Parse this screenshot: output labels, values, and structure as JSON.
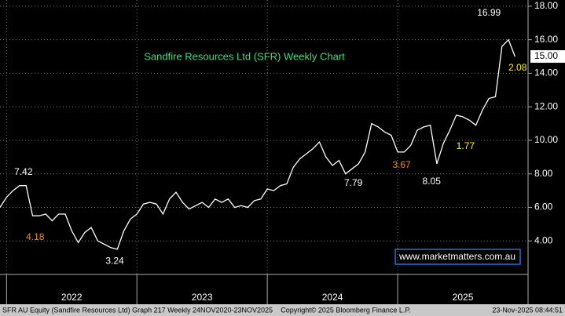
{
  "chart_data": {
    "type": "line",
    "title": "Sandfire Resources Ltd (SFR) Weekly Chart",
    "series": [
      {
        "name": "SFR AU Equity",
        "color": "#ffffff",
        "x": [
          2021.95,
          2022.0,
          2022.05,
          2022.1,
          2022.15,
          2022.2,
          2022.25,
          2022.3,
          2022.35,
          2022.4,
          2022.45,
          2022.5,
          2022.55,
          2022.6,
          2022.65,
          2022.7,
          2022.75,
          2022.8,
          2022.85,
          2022.9,
          2022.95,
          2023.0,
          2023.05,
          2023.1,
          2023.15,
          2023.2,
          2023.25,
          2023.3,
          2023.35,
          2023.4,
          2023.45,
          2023.5,
          2023.55,
          2023.6,
          2023.65,
          2023.7,
          2023.75,
          2023.8,
          2023.85,
          2023.9,
          2023.95,
          2024.0,
          2024.05,
          2024.1,
          2024.15,
          2024.2,
          2024.25,
          2024.3,
          2024.35,
          2024.4,
          2024.45,
          2024.5,
          2024.55,
          2024.6,
          2024.65,
          2024.7,
          2024.75,
          2024.8,
          2024.85,
          2024.9,
          2024.95,
          2025.0,
          2025.05,
          2025.1,
          2025.15,
          2025.2,
          2025.25,
          2025.3,
          2025.35,
          2025.4,
          2025.45,
          2025.5,
          2025.55,
          2025.6,
          2025.65,
          2025.7,
          2025.75,
          2025.8,
          2025.85,
          2025.9
        ],
        "values": [
          6.0,
          6.6,
          7.0,
          7.3,
          7.3,
          5.5,
          5.5,
          5.6,
          5.2,
          5.6,
          5.6,
          4.6,
          3.9,
          4.5,
          4.8,
          4.0,
          3.8,
          3.6,
          3.5,
          4.6,
          5.3,
          5.6,
          6.2,
          6.3,
          6.2,
          5.6,
          6.5,
          6.9,
          6.3,
          5.9,
          6.1,
          6.3,
          6.0,
          6.5,
          6.3,
          6.5,
          6.0,
          6.1,
          6.0,
          6.4,
          6.5,
          7.1,
          7.0,
          7.3,
          7.4,
          8.4,
          8.9,
          9.2,
          9.5,
          9.9,
          9.0,
          8.5,
          8.8,
          8.0,
          8.3,
          8.6,
          9.3,
          11.0,
          10.8,
          10.5,
          10.3,
          9.3,
          9.3,
          9.7,
          10.6,
          10.8,
          10.9,
          8.6,
          9.8,
          10.6,
          11.5,
          11.4,
          11.2,
          10.9,
          11.8,
          12.5,
          12.6,
          15.6,
          16.0,
          15.0
        ]
      }
    ],
    "xlim": [
      2021.95,
      2026.0
    ],
    "xticks": [
      {
        "value": 2022.5,
        "label": "2022"
      },
      {
        "value": 2023.5,
        "label": "2023"
      },
      {
        "value": 2024.5,
        "label": "2024"
      },
      {
        "value": 2025.5,
        "label": "2025"
      }
    ],
    "ylim": [
      2,
      18.37
    ],
    "yticks": [
      {
        "value": 4,
        "label": "4.00"
      },
      {
        "value": 6,
        "label": "6.00"
      },
      {
        "value": 8,
        "label": "8.00"
      },
      {
        "value": 10,
        "label": "10.00"
      },
      {
        "value": 12,
        "label": "12.00"
      },
      {
        "value": 14,
        "label": "14.00"
      },
      {
        "value": 16,
        "label": "16.00"
      },
      {
        "value": 18,
        "label": "18.00"
      }
    ],
    "grid": true,
    "last_price": {
      "value": 15,
      "label": "15.00"
    },
    "annotations": [
      {
        "text": "7.42",
        "x": 2022.13,
        "y": 8.09,
        "color": "#ffffff"
      },
      {
        "text": "4.18",
        "x": 2022.22,
        "y": 4.21,
        "color": "#f08a24"
      },
      {
        "text": "3.24",
        "x": 2022.83,
        "y": 2.77,
        "color": "#ffffff"
      },
      {
        "text": "7.79",
        "x": 2024.66,
        "y": 7.44,
        "color": "#ffffff"
      },
      {
        "text": "3.67",
        "x": 2025.03,
        "y": 8.51,
        "color": "#f08a24"
      },
      {
        "text": "8.05",
        "x": 2025.26,
        "y": 7.53,
        "color": "#ffffff"
      },
      {
        "text": "1.77",
        "x": 2025.52,
        "y": 9.64,
        "color": "#ffee33"
      },
      {
        "text": "16.99",
        "x": 2025.7,
        "y": 17.58,
        "color": "#ffffff"
      },
      {
        "text": "2.08",
        "x": 2025.92,
        "y": 14.31,
        "color": "#ffee33"
      }
    ],
    "watermark": "www.marketmatters.com.au"
  },
  "footer": {
    "left": "SFR AU Equity (Sandfire Resources Ltd) Graph 217 Weekly 24NOV2020-23NOV2025",
    "middle": "Copyright© 2025 Bloomberg Finance L.P.",
    "right": "23-Nov-2025 08:44:51"
  }
}
